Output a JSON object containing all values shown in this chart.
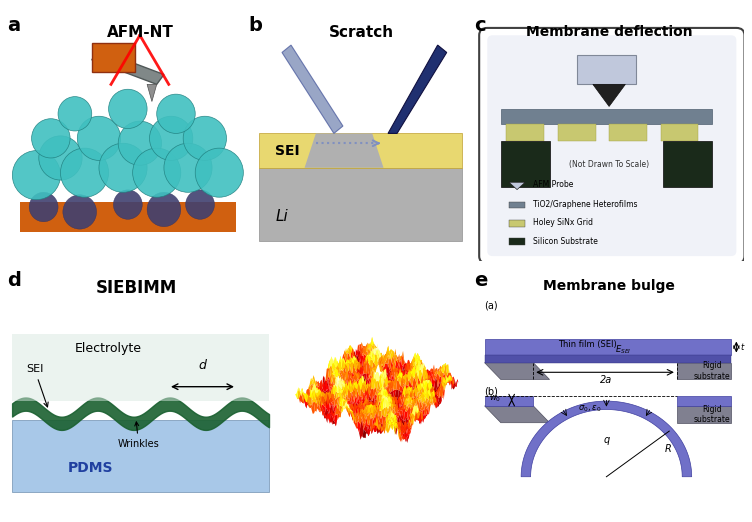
{
  "panel_labels": [
    "a",
    "b",
    "c",
    "d",
    "e"
  ],
  "panel_a_title": "AFM-NT",
  "panel_b_title": "Scratch",
  "panel_c_title": "Membrane deflection",
  "panel_d_title": "SIEBIMM",
  "panel_e_title": "Membrane bulge",
  "bg_color": "#ffffff",
  "sei_color": "#e8d870",
  "li_color": "#a0a0a0",
  "teal_color": "#40c0c0",
  "orange_color": "#d06010",
  "purple_color": "#7070c0",
  "gray_color": "#808080",
  "green_dark": "#1a6030",
  "blue_light": "#a0c0e0",
  "afm_probe_color": "#b8c4d8",
  "tio2_color": "#708090",
  "holey_color": "#c8c870",
  "silicon_color": "#1a2a1a"
}
